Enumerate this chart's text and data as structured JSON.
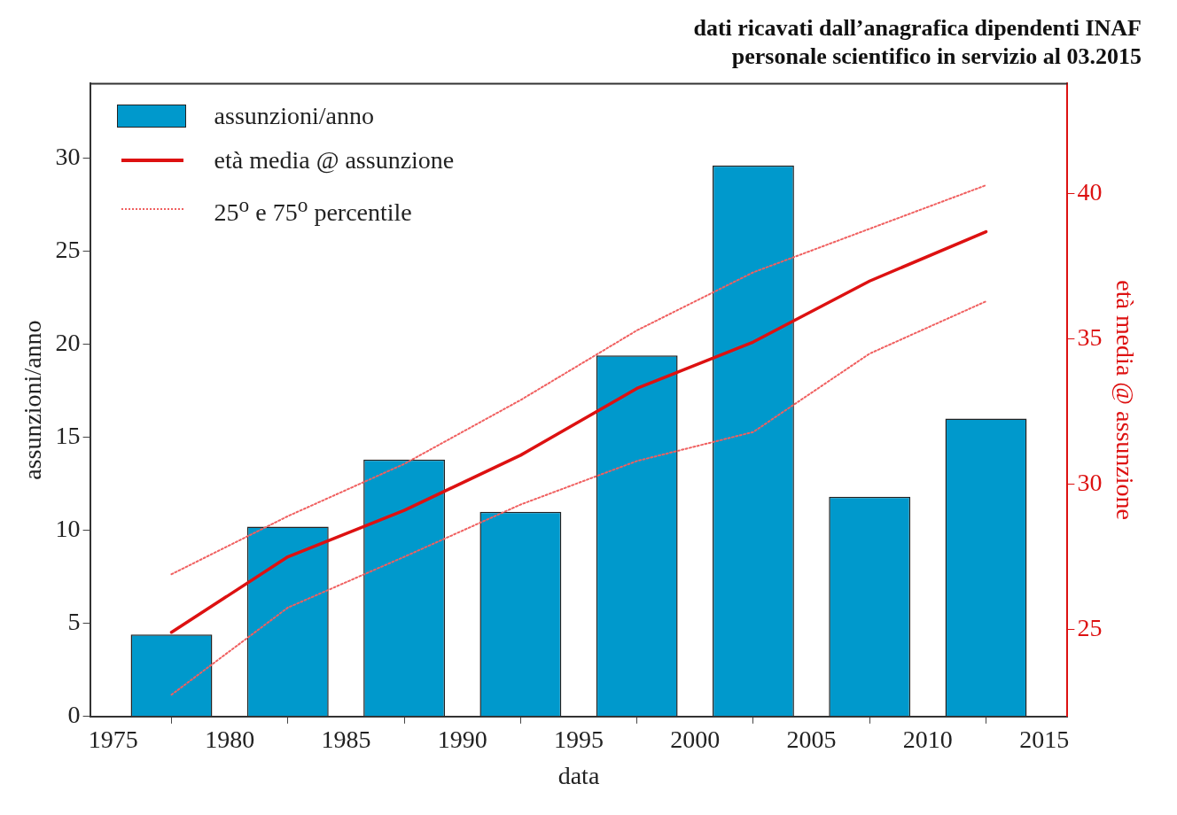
{
  "chart_data": {
    "type": "bar",
    "title": "dati ricavati dall’anagrafica dipendenti INAF",
    "subtitle": "personale scientifico in servizio al 03.2015",
    "xlabel": "data",
    "ylabel": "assunzioni/anno",
    "y2label": "età media @ assunzione",
    "x": [
      1977.5,
      1982.5,
      1987.5,
      1992.5,
      1997.5,
      2002.5,
      2007.5,
      2012.5
    ],
    "xlim": [
      1974,
      2016
    ],
    "xticks": [
      1975,
      1980,
      1985,
      1990,
      1995,
      2000,
      2005,
      2010,
      2015
    ],
    "ylim": [
      0,
      34
    ],
    "yticks": [
      0,
      5,
      10,
      15,
      20,
      25,
      30
    ],
    "y2lim": [
      22,
      43.8
    ],
    "y2ticks": [
      25,
      30,
      35,
      40
    ],
    "grid": false,
    "legend": "top left",
    "series": [
      {
        "name": "assunzioni/anno",
        "color": "#0099cc",
        "values": [
          4.4,
          10.2,
          13.8,
          11.0,
          19.4,
          29.6,
          11.8,
          16.0
        ]
      },
      {
        "name": "età media @ assunzione",
        "type": "line",
        "axis": "y2",
        "color": "#dd1111",
        "line_style": "solid",
        "values": [
          24.9,
          27.5,
          29.1,
          31.0,
          33.3,
          34.9,
          37.0,
          38.7
        ]
      },
      {
        "name": "25$^{o}$ e 75$^{o}$ percentile",
        "type": "line",
        "axis": "y2",
        "color": "#f06060",
        "line_style": "dotted",
        "values": [
          26.9,
          28.9,
          30.7,
          32.9,
          35.3,
          37.3,
          38.8,
          40.3
        ]
      },
      {
        "type": "line",
        "axis": "y2",
        "color": "#f06060",
        "line_style": "dotted",
        "values": [
          22.75,
          25.75,
          27.5,
          29.3,
          30.8,
          31.8,
          34.5,
          36.3
        ]
      }
    ]
  }
}
